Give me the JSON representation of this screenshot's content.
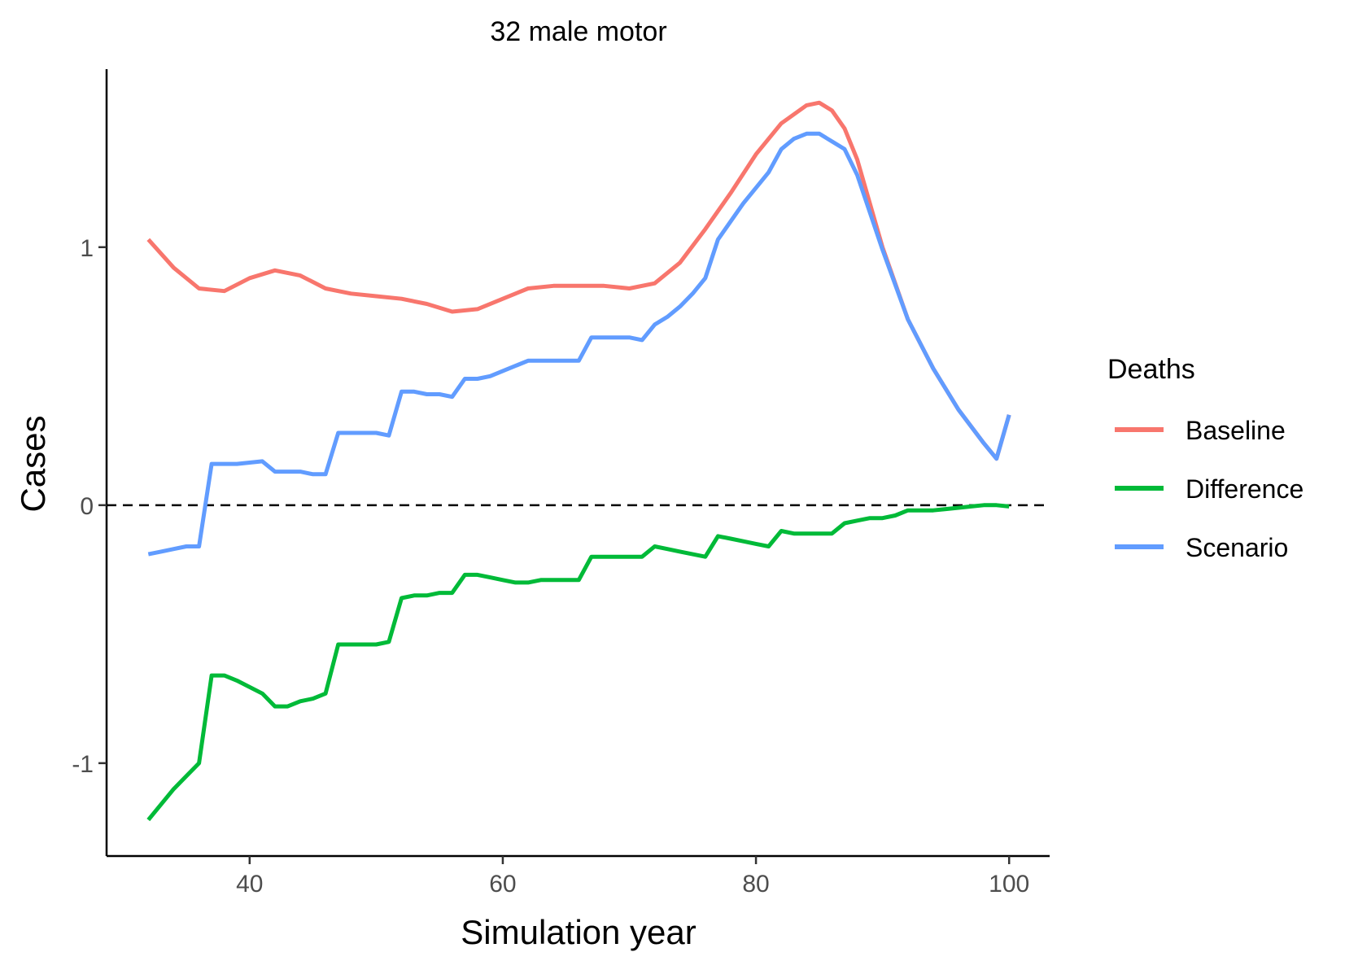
{
  "chart_data": {
    "type": "line",
    "title": "32 male motor",
    "xlabel": "Simulation year",
    "ylabel": "Cases",
    "xlim": [
      28.7,
      103.2
    ],
    "ylim": [
      -1.36,
      1.69
    ],
    "xticks": [
      40,
      60,
      80,
      100
    ],
    "yticks": [
      -1,
      0,
      1
    ],
    "xtick_labels": [
      "40",
      "60",
      "80",
      "100"
    ],
    "ytick_labels": [
      "-1",
      "0",
      "1"
    ],
    "reference_line": {
      "y": 0,
      "style": "dashed",
      "color": "#000000"
    },
    "grid": false,
    "legend": {
      "title": "Deaths",
      "position": "right"
    },
    "series": [
      {
        "name": "Baseline",
        "color": "#F8766D",
        "x": [
          32,
          34,
          36,
          38,
          40,
          42,
          44,
          46,
          48,
          50,
          52,
          54,
          56,
          58,
          60,
          62,
          64,
          66,
          68,
          70,
          72,
          74,
          76,
          78,
          80,
          82,
          84,
          85,
          86,
          87,
          88,
          90,
          92,
          94,
          96,
          98,
          99,
          100
        ],
        "y": [
          1.03,
          0.92,
          0.84,
          0.83,
          0.88,
          0.91,
          0.89,
          0.84,
          0.82,
          0.81,
          0.8,
          0.78,
          0.75,
          0.76,
          0.8,
          0.84,
          0.85,
          0.85,
          0.85,
          0.84,
          0.86,
          0.94,
          1.07,
          1.21,
          1.36,
          1.48,
          1.55,
          1.56,
          1.53,
          1.46,
          1.34,
          1.0,
          0.72,
          0.53,
          0.37,
          0.24,
          0.18,
          0.35
        ]
      },
      {
        "name": "Difference",
        "color": "#00BA38",
        "x": [
          32,
          33,
          34,
          35,
          36,
          37,
          38,
          39,
          41,
          42,
          43,
          44,
          45,
          46,
          47,
          48,
          49,
          50,
          51,
          52,
          53,
          54,
          55,
          56,
          57,
          58,
          59,
          60,
          61,
          62,
          63,
          64,
          65,
          66,
          67,
          68,
          69,
          70,
          71,
          72,
          73,
          74,
          75,
          76,
          77,
          78,
          79,
          80,
          81,
          82,
          83,
          84,
          85,
          86,
          87,
          88,
          89,
          90,
          91,
          92,
          93,
          94,
          95,
          96,
          97,
          98,
          99,
          100
        ],
        "y": [
          -1.22,
          -1.16,
          -1.1,
          -1.05,
          -1.0,
          -0.66,
          -0.66,
          -0.68,
          -0.73,
          -0.78,
          -0.78,
          -0.76,
          -0.75,
          -0.73,
          -0.54,
          -0.54,
          -0.54,
          -0.54,
          -0.53,
          -0.36,
          -0.35,
          -0.35,
          -0.34,
          -0.34,
          -0.27,
          -0.27,
          -0.28,
          -0.29,
          -0.3,
          -0.3,
          -0.29,
          -0.29,
          -0.29,
          -0.29,
          -0.2,
          -0.2,
          -0.2,
          -0.2,
          -0.2,
          -0.16,
          -0.17,
          -0.18,
          -0.19,
          -0.2,
          -0.12,
          -0.13,
          -0.14,
          -0.15,
          -0.16,
          -0.1,
          -0.11,
          -0.11,
          -0.11,
          -0.11,
          -0.07,
          -0.06,
          -0.05,
          -0.05,
          -0.04,
          -0.02,
          -0.02,
          -0.02,
          -0.015,
          -0.01,
          -0.005,
          0.0,
          0.0,
          -0.005
        ]
      },
      {
        "name": "Scenario",
        "color": "#619CFF",
        "x": [
          32,
          33,
          34,
          35,
          36,
          37,
          38,
          39,
          41,
          42,
          43,
          44,
          45,
          46,
          47,
          48,
          49,
          50,
          51,
          52,
          53,
          54,
          55,
          56,
          57,
          58,
          59,
          60,
          61,
          62,
          63,
          64,
          65,
          66,
          67,
          68,
          69,
          70,
          71,
          72,
          73,
          74,
          75,
          76,
          77,
          78,
          79,
          80,
          81,
          82,
          83,
          84,
          85,
          86,
          87,
          88,
          90,
          92,
          94,
          96,
          98,
          99,
          100
        ],
        "y": [
          -0.19,
          -0.18,
          -0.17,
          -0.16,
          -0.16,
          0.16,
          0.16,
          0.16,
          0.17,
          0.13,
          0.13,
          0.13,
          0.12,
          0.12,
          0.28,
          0.28,
          0.28,
          0.28,
          0.27,
          0.44,
          0.44,
          0.43,
          0.43,
          0.42,
          0.49,
          0.49,
          0.5,
          0.52,
          0.54,
          0.56,
          0.56,
          0.56,
          0.56,
          0.56,
          0.65,
          0.65,
          0.65,
          0.65,
          0.64,
          0.7,
          0.73,
          0.77,
          0.82,
          0.88,
          1.03,
          1.1,
          1.17,
          1.23,
          1.29,
          1.38,
          1.42,
          1.44,
          1.44,
          1.41,
          1.38,
          1.28,
          0.99,
          0.72,
          0.53,
          0.37,
          0.24,
          0.18,
          0.35
        ]
      }
    ]
  }
}
